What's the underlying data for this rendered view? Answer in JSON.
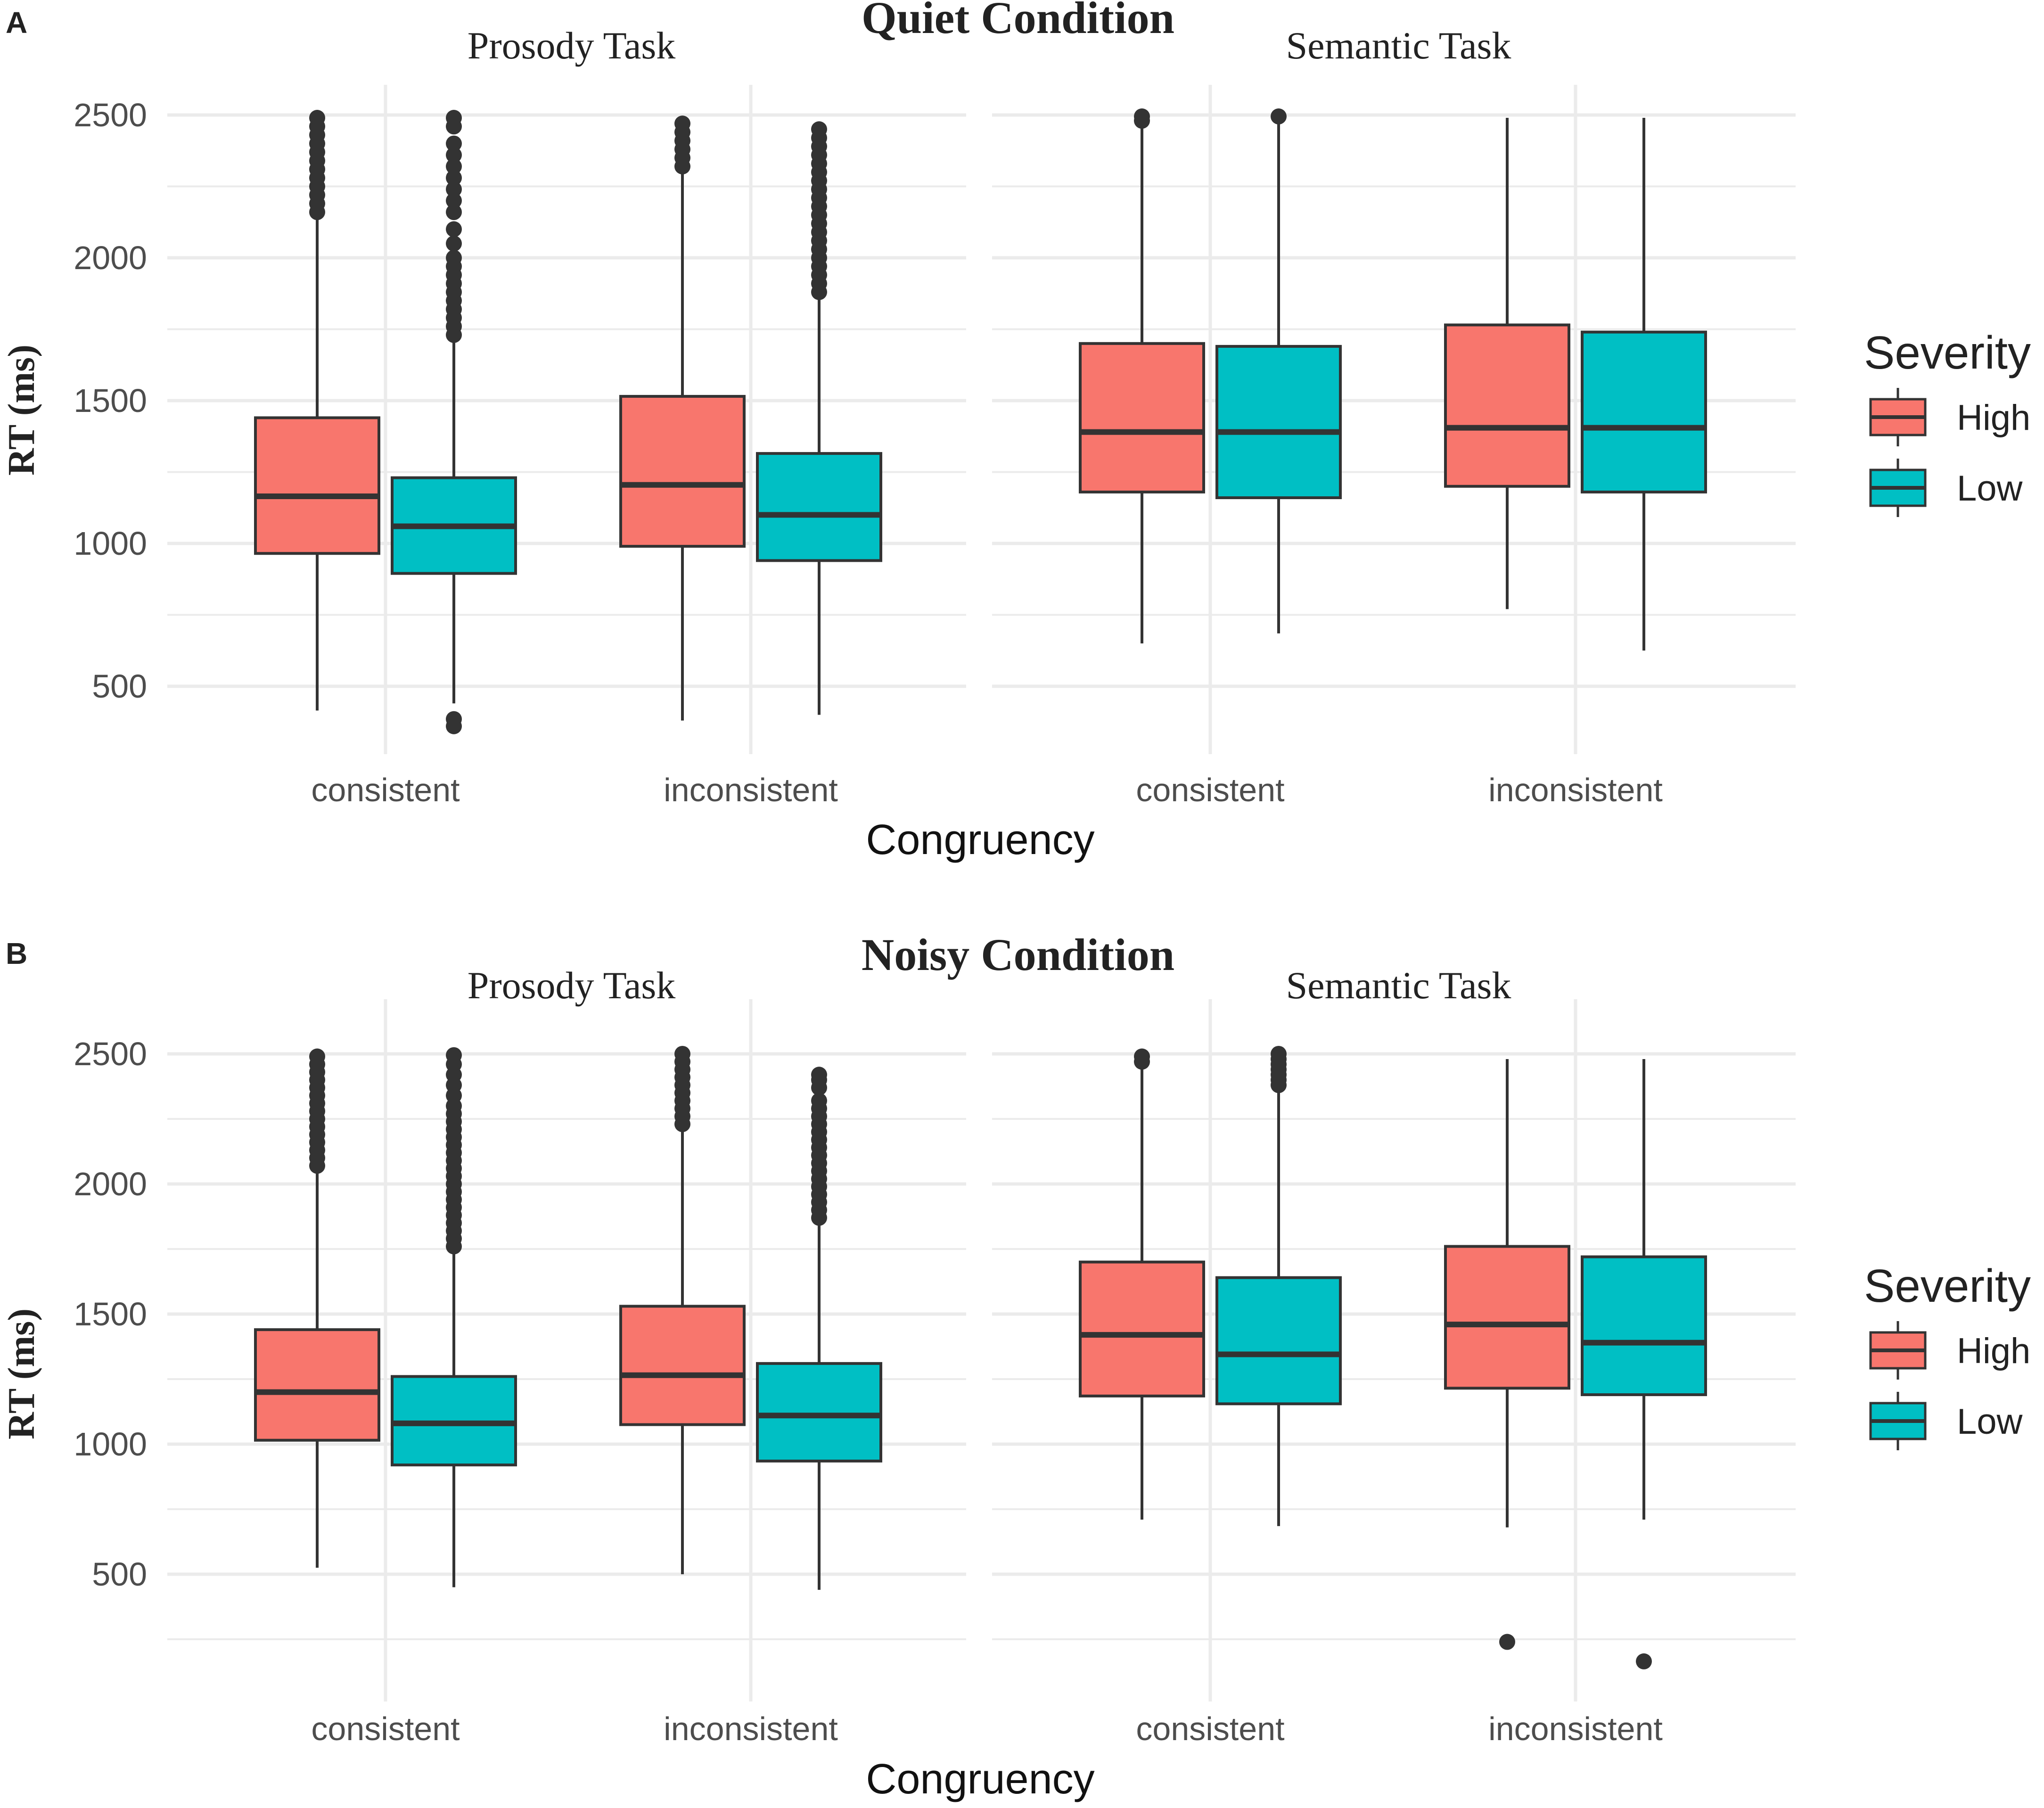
{
  "figure": {
    "legend_title": "Severity",
    "legend_items": [
      {
        "label": "High",
        "color": "#F8766D"
      },
      {
        "label": "Low",
        "color": "#00BFC4"
      }
    ],
    "stroke_color": "#333333",
    "grid_color": "#EBEBEB"
  },
  "chart_data": [
    {
      "type": "boxplot",
      "panel_letter": "A",
      "title": "Quiet Condition",
      "ylabel": "RT (ms)",
      "xlabel": "Congruency",
      "ylim": [
        330,
        2610
      ],
      "yticks": [
        500,
        1000,
        1500,
        2000,
        2500
      ],
      "facets": [
        {
          "name": "Prosody Task",
          "categories": [
            "consistent",
            "inconsistent"
          ],
          "groups": [
            {
              "category": "consistent",
              "severity": "High",
              "whisker_low": 415,
              "q1": 965,
              "median": 1165,
              "q3": 1440,
              "whisker_high": 2150,
              "outliers": [
                2160,
                2190,
                2220,
                2250,
                2280,
                2310,
                2340,
                2370,
                2400,
                2430,
                2460,
                2490
              ]
            },
            {
              "category": "consistent",
              "severity": "Low",
              "whisker_low": 440,
              "q1": 895,
              "median": 1060,
              "q3": 1230,
              "whisker_high": 1720,
              "outliers": [
                360,
                385,
                1730,
                1760,
                1790,
                1820,
                1850,
                1880,
                1910,
                1940,
                1970,
                2000,
                2050,
                2100,
                2160,
                2200,
                2240,
                2280,
                2320,
                2360,
                2400,
                2460,
                2490
              ]
            },
            {
              "category": "inconsistent",
              "severity": "High",
              "whisker_low": 380,
              "q1": 990,
              "median": 1205,
              "q3": 1515,
              "whisker_high": 2300,
              "outliers": [
                2320,
                2350,
                2380,
                2410,
                2440,
                2470
              ]
            },
            {
              "category": "inconsistent",
              "severity": "Low",
              "whisker_low": 400,
              "q1": 940,
              "median": 1100,
              "q3": 1315,
              "whisker_high": 1870,
              "outliers": [
                1880,
                1910,
                1940,
                1970,
                2000,
                2030,
                2060,
                2090,
                2120,
                2150,
                2180,
                2210,
                2240,
                2270,
                2300,
                2330,
                2360,
                2390,
                2420,
                2450
              ]
            }
          ]
        },
        {
          "name": "Semantic Task",
          "categories": [
            "consistent",
            "inconsistent"
          ],
          "groups": [
            {
              "category": "consistent",
              "severity": "High",
              "whisker_low": 650,
              "q1": 1180,
              "median": 1390,
              "q3": 1700,
              "whisker_high": 2470,
              "outliers": [
                2480,
                2495
              ]
            },
            {
              "category": "consistent",
              "severity": "Low",
              "whisker_low": 685,
              "q1": 1160,
              "median": 1390,
              "q3": 1690,
              "whisker_high": 2480,
              "outliers": [
                2495
              ]
            },
            {
              "category": "inconsistent",
              "severity": "High",
              "whisker_low": 770,
              "q1": 1200,
              "median": 1405,
              "q3": 1765,
              "whisker_high": 2490,
              "outliers": []
            },
            {
              "category": "inconsistent",
              "severity": "Low",
              "whisker_low": 625,
              "q1": 1180,
              "median": 1405,
              "q3": 1740,
              "whisker_high": 2490,
              "outliers": []
            }
          ]
        }
      ]
    },
    {
      "type": "boxplot",
      "panel_letter": "B",
      "title": "Noisy Condition",
      "ylabel": "RT (ms)",
      "xlabel": "Congruency",
      "ylim": [
        120,
        2610
      ],
      "yticks": [
        500,
        1000,
        1500,
        2000,
        2500
      ],
      "facets": [
        {
          "name": "Prosody Task",
          "categories": [
            "consistent",
            "inconsistent"
          ],
          "groups": [
            {
              "category": "consistent",
              "severity": "High",
              "whisker_low": 525,
              "q1": 1015,
              "median": 1200,
              "q3": 1440,
              "whisker_high": 2060,
              "outliers": [
                2070,
                2100,
                2130,
                2160,
                2190,
                2220,
                2250,
                2280,
                2310,
                2340,
                2370,
                2400,
                2430,
                2460,
                2490
              ]
            },
            {
              "category": "consistent",
              "severity": "Low",
              "whisker_low": 450,
              "q1": 920,
              "median": 1080,
              "q3": 1260,
              "whisker_high": 1750,
              "outliers": [
                1760,
                1790,
                1820,
                1850,
                1880,
                1910,
                1940,
                1970,
                2000,
                2030,
                2060,
                2090,
                2120,
                2150,
                2180,
                2210,
                2240,
                2270,
                2300,
                2340,
                2380,
                2420,
                2460,
                2495
              ]
            },
            {
              "category": "inconsistent",
              "severity": "High",
              "whisker_low": 500,
              "q1": 1075,
              "median": 1265,
              "q3": 1530,
              "whisker_high": 2220,
              "outliers": [
                2230,
                2260,
                2290,
                2320,
                2350,
                2380,
                2410,
                2440,
                2470,
                2500
              ]
            },
            {
              "category": "inconsistent",
              "severity": "Low",
              "whisker_low": 440,
              "q1": 935,
              "median": 1110,
              "q3": 1310,
              "whisker_high": 1860,
              "outliers": [
                1870,
                1900,
                1930,
                1960,
                1990,
                2020,
                2050,
                2080,
                2110,
                2140,
                2170,
                2200,
                2230,
                2260,
                2290,
                2320,
                2370,
                2400,
                2420
              ]
            }
          ]
        },
        {
          "name": "Semantic Task",
          "categories": [
            "consistent",
            "inconsistent"
          ],
          "groups": [
            {
              "category": "consistent",
              "severity": "High",
              "whisker_low": 710,
              "q1": 1185,
              "median": 1420,
              "q3": 1700,
              "whisker_high": 2460,
              "outliers": [
                2470,
                2490
              ]
            },
            {
              "category": "consistent",
              "severity": "Low",
              "whisker_low": 685,
              "q1": 1155,
              "median": 1345,
              "q3": 1640,
              "whisker_high": 2370,
              "outliers": [
                2380,
                2400,
                2420,
                2440,
                2460,
                2480,
                2500
              ]
            },
            {
              "category": "inconsistent",
              "severity": "High",
              "whisker_low": 680,
              "q1": 1215,
              "median": 1460,
              "q3": 1760,
              "whisker_high": 2480,
              "outliers": [
                240
              ]
            },
            {
              "category": "inconsistent",
              "severity": "Low",
              "whisker_low": 710,
              "q1": 1190,
              "median": 1390,
              "q3": 1720,
              "whisker_high": 2480,
              "outliers": [
                165
              ]
            }
          ]
        }
      ]
    }
  ]
}
